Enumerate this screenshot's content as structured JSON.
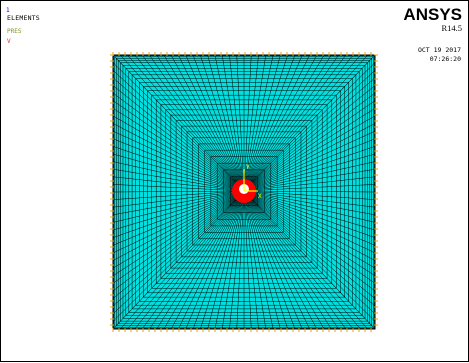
{
  "window": {
    "number": "1",
    "plot_title": "ELEMENTS",
    "element_type_label": "PRES",
    "arrow_label": "V"
  },
  "branding": {
    "name": "ANSYS",
    "release": "R14.5"
  },
  "timestamp": {
    "date": "OCT 19 2017",
    "time": "07:26:20"
  },
  "colors": {
    "mesh_fill": "#00e0e0",
    "mesh_lines": "#000000",
    "boundary_markers": "#e8a000",
    "hole_fill": "#ff0000",
    "triad": "#ffff00",
    "background": "#ffffff"
  },
  "triad": {
    "y_label": "Y",
    "x_label": "X"
  }
}
